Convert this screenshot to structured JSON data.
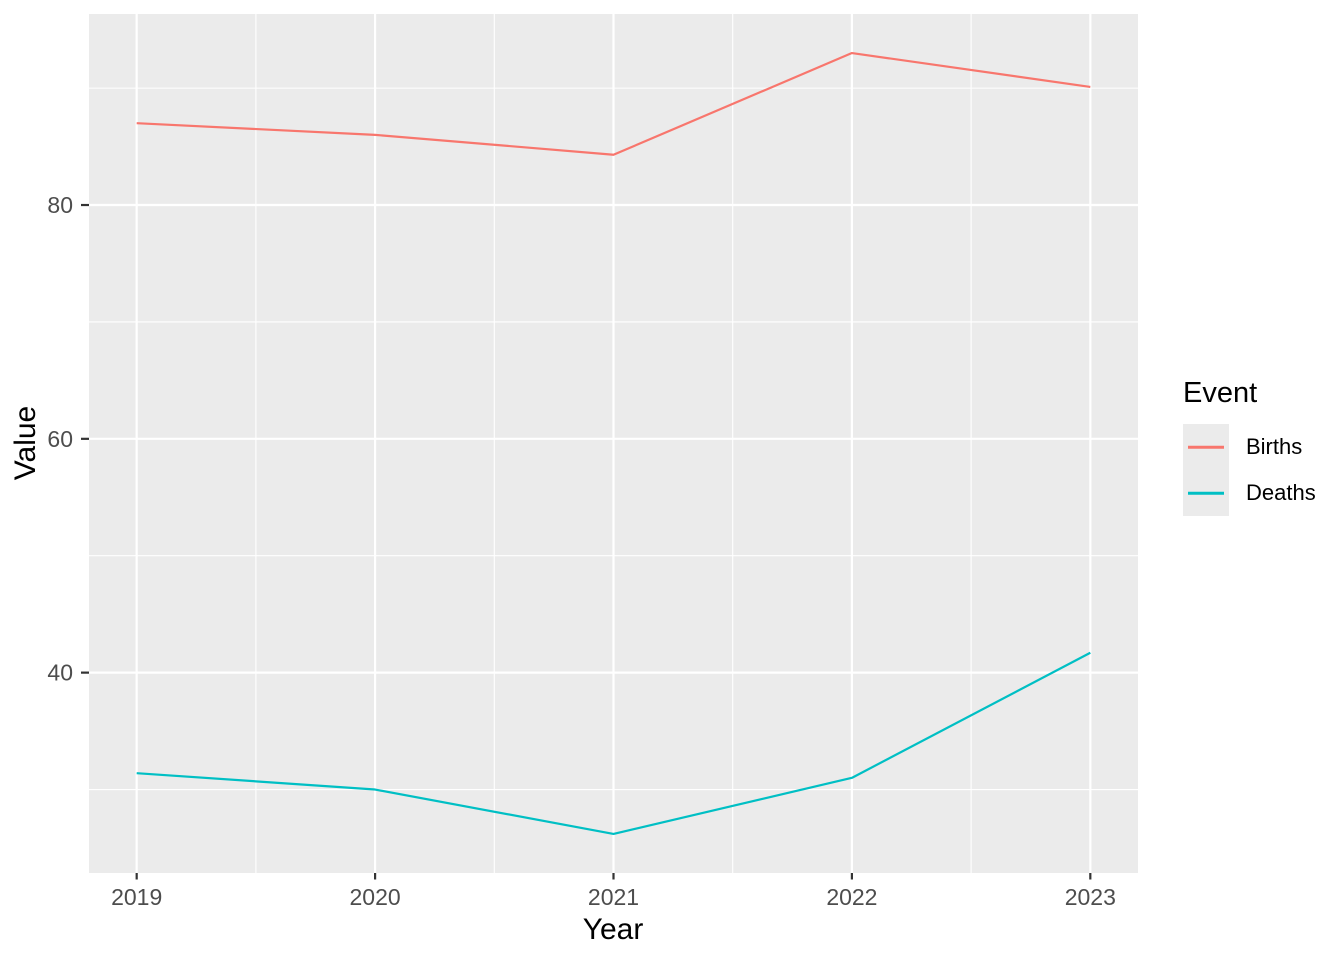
{
  "chart_data": {
    "type": "line",
    "x": [
      2019,
      2020,
      2021,
      2022,
      2023
    ],
    "series": [
      {
        "name": "Births",
        "color": "#F8766D",
        "values": [
          87.0,
          86.0,
          84.3,
          93.0,
          90.1
        ]
      },
      {
        "name": "Deaths",
        "color": "#00BFC4",
        "values": [
          31.4,
          30.0,
          26.2,
          31.0,
          41.7
        ]
      }
    ],
    "title": "",
    "xlabel": "Year",
    "ylabel": "Value",
    "legend_title": "Event",
    "legend_position": "right",
    "xlim": [
      2018.8,
      2023.2
    ],
    "ylim": [
      22.86,
      96.34
    ],
    "x_major_ticks": [
      2019,
      2020,
      2021,
      2022,
      2023
    ],
    "x_tick_labels": [
      "2019",
      "2020",
      "2021",
      "2022",
      "2023"
    ],
    "x_minor_gridlines": [
      2019.5,
      2020.5,
      2021.5,
      2022.5
    ],
    "y_major_ticks": [
      40,
      60,
      80
    ],
    "y_tick_labels": [
      "40",
      "60",
      "80"
    ],
    "y_minor_gridlines": [
      30,
      50,
      70,
      90
    ],
    "grid": true
  },
  "colors": {
    "panel_background": "#EBEBEB",
    "gridline": "#FFFFFF",
    "tick_mark": "#333333",
    "tick_text": "#4D4D4D",
    "title_text": "#000000",
    "legend_key_background": "#EBEBEB"
  }
}
